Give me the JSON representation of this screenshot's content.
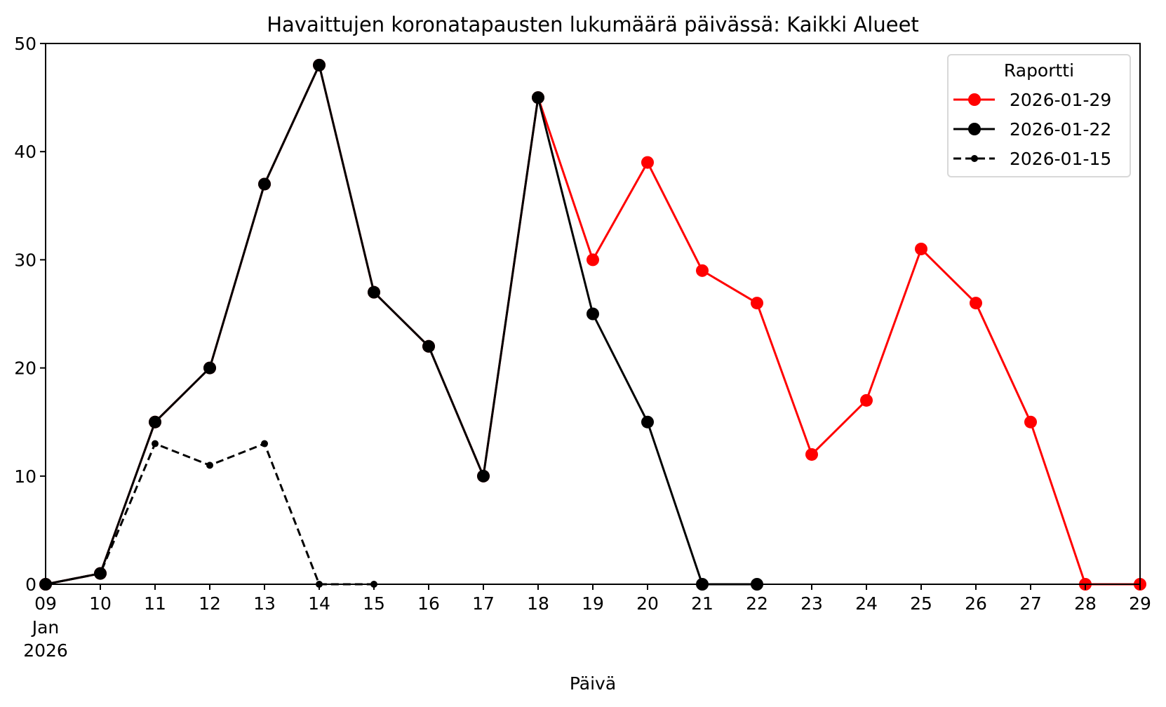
{
  "chart_data": {
    "type": "line",
    "title": "Havaittujen koronatapausten lukumäärä päivässä: Kaikki Alueet",
    "xlabel": "Päivä",
    "ylabel": "",
    "x_dates": [
      "2026-01-09",
      "2026-01-10",
      "2026-01-11",
      "2026-01-12",
      "2026-01-13",
      "2026-01-14",
      "2026-01-15",
      "2026-01-16",
      "2026-01-17",
      "2026-01-18",
      "2026-01-19",
      "2026-01-20",
      "2026-01-21",
      "2026-01-22",
      "2026-01-23",
      "2026-01-24",
      "2026-01-25",
      "2026-01-26",
      "2026-01-27",
      "2026-01-28",
      "2026-01-29"
    ],
    "x_tick_labels": [
      "09",
      "10",
      "11",
      "12",
      "13",
      "14",
      "15",
      "16",
      "17",
      "18",
      "19",
      "20",
      "21",
      "22",
      "23",
      "24",
      "25",
      "26",
      "27",
      "28",
      "29"
    ],
    "x_first_tick_extra": [
      "Jan",
      "2026"
    ],
    "xlim": [
      "2026-01-09",
      "2026-01-29"
    ],
    "ylim": [
      0,
      50
    ],
    "y_ticks": [
      0,
      10,
      20,
      30,
      40,
      50
    ],
    "grid": false,
    "legend": {
      "title": "Raportti",
      "placement": "top-right"
    },
    "series": [
      {
        "name": "2026-01-29",
        "color": "#ff0000",
        "style": "solid",
        "marker": "large-dot",
        "x": [
          "2026-01-09",
          "2026-01-10",
          "2026-01-11",
          "2026-01-12",
          "2026-01-13",
          "2026-01-14",
          "2026-01-15",
          "2026-01-16",
          "2026-01-17",
          "2026-01-18",
          "2026-01-19",
          "2026-01-20",
          "2026-01-21",
          "2026-01-22",
          "2026-01-23",
          "2026-01-24",
          "2026-01-25",
          "2026-01-26",
          "2026-01-27",
          "2026-01-28",
          "2026-01-29"
        ],
        "values": [
          0,
          1,
          15,
          20,
          37,
          48,
          27,
          22,
          10,
          45,
          30,
          39,
          29,
          26,
          12,
          17,
          31,
          26,
          15,
          0,
          0
        ]
      },
      {
        "name": "2026-01-22",
        "color": "#000000",
        "style": "solid",
        "marker": "large-dot",
        "x": [
          "2026-01-09",
          "2026-01-10",
          "2026-01-11",
          "2026-01-12",
          "2026-01-13",
          "2026-01-14",
          "2026-01-15",
          "2026-01-16",
          "2026-01-17",
          "2026-01-18",
          "2026-01-19",
          "2026-01-20",
          "2026-01-21",
          "2026-01-22"
        ],
        "values": [
          0,
          1,
          15,
          20,
          37,
          48,
          27,
          22,
          10,
          45,
          25,
          15,
          0,
          0
        ]
      },
      {
        "name": "2026-01-15",
        "color": "#000000",
        "style": "dashed",
        "marker": "small-dot",
        "x": [
          "2026-01-09",
          "2026-01-10",
          "2026-01-11",
          "2026-01-12",
          "2026-01-13",
          "2026-01-14",
          "2026-01-15"
        ],
        "values": [
          0,
          1,
          13,
          11,
          13,
          0,
          0
        ]
      }
    ]
  }
}
